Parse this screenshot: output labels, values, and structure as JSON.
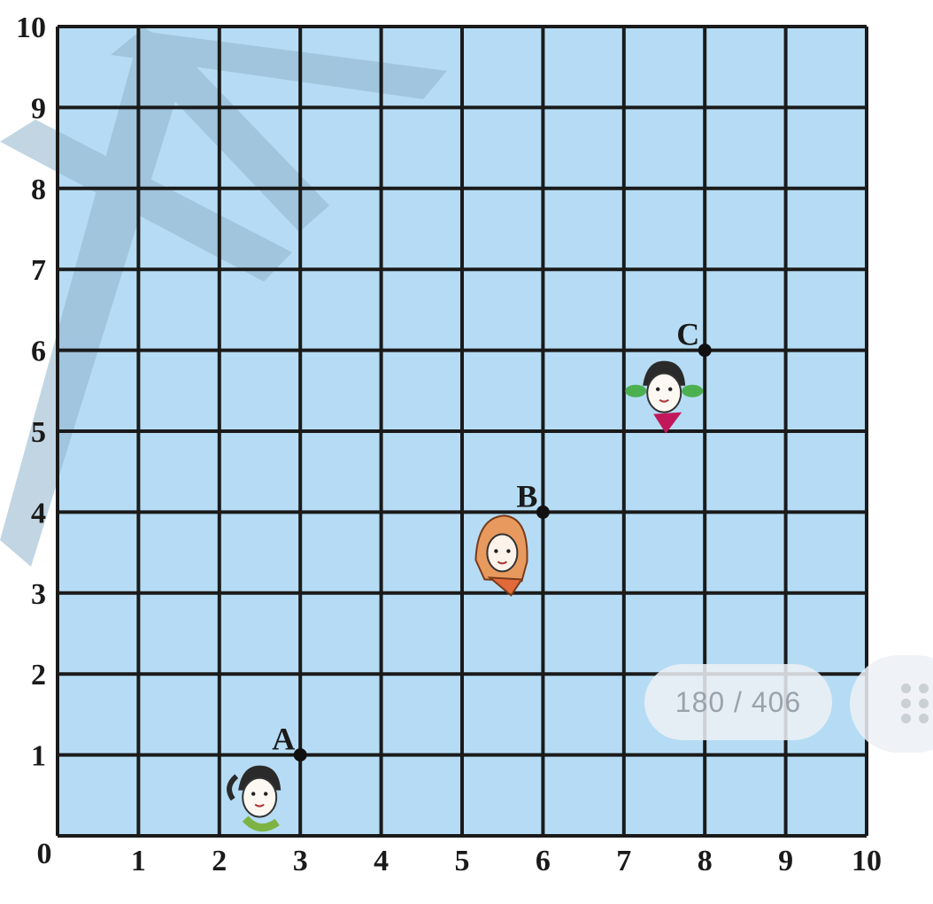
{
  "grid": {
    "x_ticks": [
      "0",
      "1",
      "2",
      "3",
      "4",
      "5",
      "6",
      "7",
      "8",
      "9",
      "10"
    ],
    "y_ticks": [
      "1",
      "2",
      "3",
      "4",
      "5",
      "6",
      "7",
      "8",
      "9",
      "10"
    ],
    "fill_color": "#b5dcf4",
    "line_color": "#1a1a1a"
  },
  "points": [
    {
      "label": "A",
      "x": 3,
      "y": 1,
      "figure": "girl-with-ponytail-icon"
    },
    {
      "label": "B",
      "x": 6,
      "y": 4,
      "figure": "girl-with-headscarf-icon"
    },
    {
      "label": "C",
      "x": 8,
      "y": 6,
      "figure": "girl-with-pigtails-icon"
    }
  ],
  "watermark": {
    "color": "#8fb3cc"
  },
  "viewer": {
    "page_indicator": "180 / 406",
    "menu_icon": "grip-dots-icon"
  }
}
